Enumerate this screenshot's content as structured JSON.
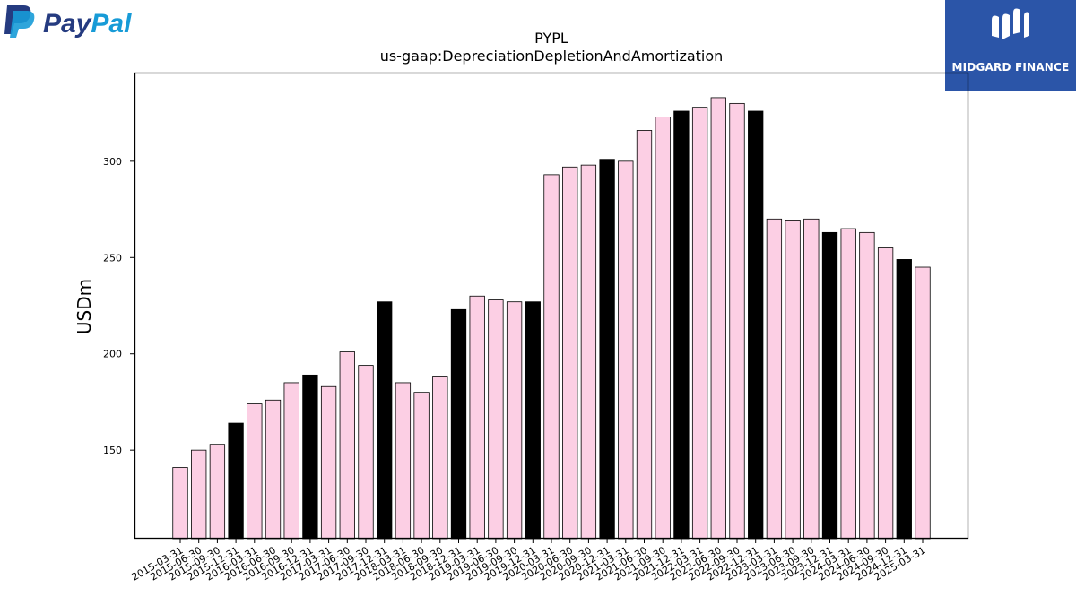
{
  "logos": {
    "left": {
      "text": "PayPal",
      "icon": "paypal-p-icon"
    },
    "right": {
      "text": "MIDGARD FINANCE",
      "icon": "midgard-mark-icon",
      "background": "#2b55a8"
    }
  },
  "colors": {
    "bar_default": "#fccfe4",
    "bar_highlight": "#000000",
    "stroke": "#000000"
  },
  "chart_data": {
    "type": "bar",
    "title": "PYPL",
    "subtitle": "us-gaap:DepreciationDepletionAndAmortization",
    "xlabel": "",
    "ylabel": "USDm",
    "ylim": [
      104,
      346
    ],
    "yticks": [
      150,
      200,
      250,
      300
    ],
    "grid": false,
    "categories": [
      "2015-03-31",
      "2015-06-30",
      "2015-09-30",
      "2015-12-31",
      "2016-03-31",
      "2016-06-30",
      "2016-09-30",
      "2016-12-31",
      "2017-03-31",
      "2017-06-30",
      "2017-09-30",
      "2017-12-31",
      "2018-03-31",
      "2018-06-30",
      "2018-09-30",
      "2018-12-31",
      "2019-03-31",
      "2019-06-30",
      "2019-09-30",
      "2019-12-31",
      "2020-03-31",
      "2020-06-30",
      "2020-09-30",
      "2020-12-31",
      "2021-03-31",
      "2021-06-30",
      "2021-09-30",
      "2021-12-31",
      "2022-03-31",
      "2022-06-30",
      "2022-09-30",
      "2022-12-31",
      "2023-03-31",
      "2023-06-30",
      "2023-09-30",
      "2023-12-31",
      "2024-03-31",
      "2024-06-30",
      "2024-09-30",
      "2024-12-31",
      "2025-03-31"
    ],
    "values": [
      141,
      150,
      153,
      164,
      174,
      176,
      185,
      189,
      183,
      201,
      194,
      227,
      185,
      180,
      188,
      223,
      230,
      228,
      227,
      227,
      293,
      297,
      298,
      301,
      300,
      316,
      323,
      326,
      328,
      333,
      330,
      326,
      270,
      269,
      270,
      263,
      265,
      263,
      255,
      249,
      245
    ],
    "highlight": [
      false,
      false,
      false,
      true,
      false,
      false,
      false,
      true,
      false,
      false,
      false,
      true,
      false,
      false,
      false,
      true,
      false,
      false,
      false,
      true,
      false,
      false,
      false,
      true,
      false,
      false,
      false,
      true,
      false,
      false,
      false,
      true,
      false,
      false,
      false,
      true,
      false,
      false,
      false,
      true,
      false
    ]
  }
}
